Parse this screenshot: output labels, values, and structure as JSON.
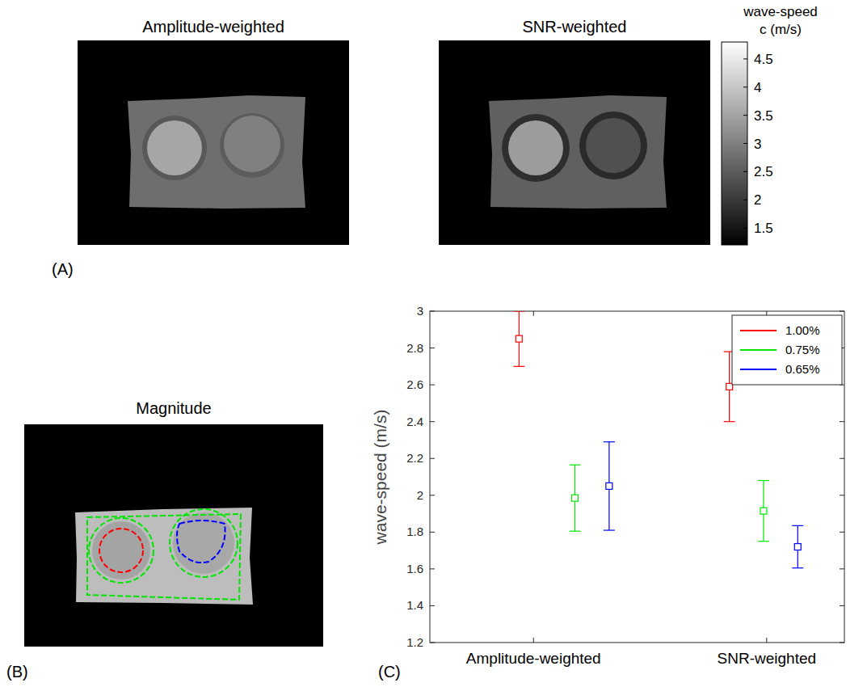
{
  "panels": [
    {
      "letter": "(A)",
      "images": [
        {
          "title": "Amplitude-weighted"
        },
        {
          "title": "SNR-weighted"
        }
      ],
      "colorbar": {
        "label": [
          "wave-speed",
          "c (m/s)"
        ],
        "range": [
          1.2,
          4.8
        ],
        "ticks": [
          1.5,
          2,
          2.5,
          3,
          3.5,
          4,
          4.5
        ]
      }
    },
    {
      "letter": "(B)",
      "title": "Magnitude"
    },
    {
      "letter": "(C)"
    }
  ],
  "chart_data": {
    "type": "scatter",
    "marker": "square",
    "y_label": "wave-speed (m/s)",
    "xlim": [
      0,
      4
    ],
    "xticks": [
      {
        "value": 1,
        "label": "Amplitude-weighted"
      },
      {
        "value": 3.25,
        "label": "SNR-weighted"
      }
    ],
    "ylim": [
      1.2,
      3
    ],
    "yticks": [
      1.2,
      1.4,
      1.6,
      1.8,
      2,
      2.2,
      2.4,
      2.6,
      2.8,
      3
    ],
    "grid": false,
    "legend": "top-right",
    "series": [
      {
        "name": "1.00%",
        "color": "#ff0000",
        "x": [
          0.86,
          2.89
        ],
        "values": [
          2.85,
          2.59
        ],
        "errors": [
          0.15,
          0.19
        ]
      },
      {
        "name": "0.75%",
        "color": "#00e600",
        "x": [
          1.4,
          3.22
        ],
        "values": [
          1.985,
          1.915
        ],
        "errors": [
          0.18,
          0.165
        ]
      },
      {
        "name": "0.65%",
        "color": "#0000ff",
        "x": [
          1.73,
          3.55
        ],
        "values": [
          2.05,
          1.72
        ],
        "errors": [
          0.24,
          0.115
        ]
      }
    ]
  }
}
